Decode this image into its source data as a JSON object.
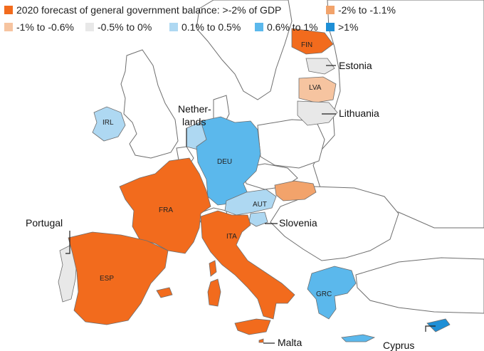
{
  "legend": [
    {
      "label": "2020 forecast of general government balance: >-2% of GDP",
      "color": "#f26b1d"
    },
    {
      "label": "-2% to -1.1%",
      "color": "#f2a36b"
    },
    {
      "label": "-1% to -0.6%",
      "color": "#f6c4a0"
    },
    {
      "label": "-0.5% to 0%",
      "color": "#e8e8e8"
    },
    {
      "label": "0.1% to 0.5%",
      "color": "#aed8f2"
    },
    {
      "label": "0.6% to 1%",
      "color": "#5bb8ec"
    },
    {
      "label": ">1%",
      "color": "#1e8fd6"
    }
  ],
  "country_codes": {
    "fin": "FIN",
    "lva": "LVA",
    "irl": "IRL",
    "deu": "DEU",
    "fra": "FRA",
    "aut": "AUT",
    "ita": "ITA",
    "esp": "ESP",
    "grc": "GRC"
  },
  "callouts": {
    "estonia": "Estonia",
    "lithuania": "Lithuania",
    "netherlands_1": "Nether-",
    "netherlands_2": "lands",
    "portugal": "Portugal",
    "slovenia": "Slovenia",
    "malta": "Malta",
    "cyprus": "Cyprus"
  },
  "colors": {
    "neutral_land": "#ffffff",
    "border": "#6e6e6e",
    "water": "#ffffff"
  }
}
